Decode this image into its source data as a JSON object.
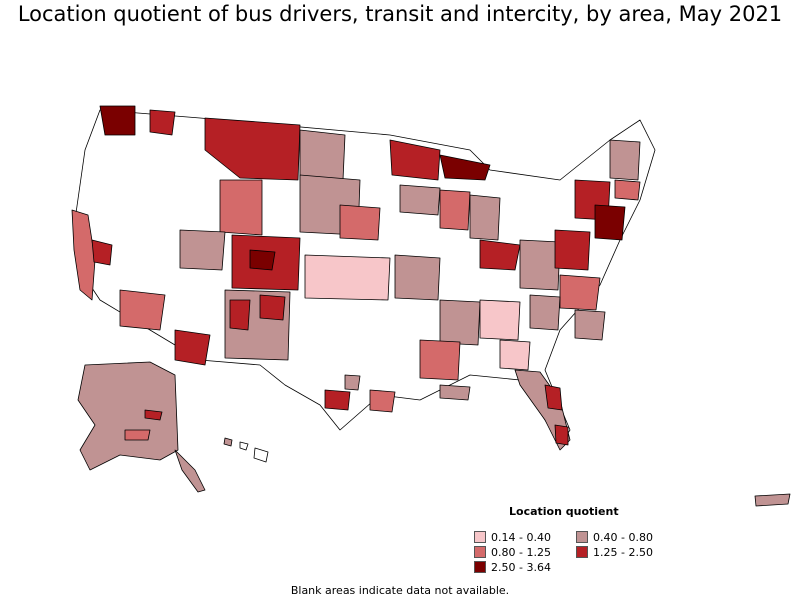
{
  "title": "Location quotient of bus drivers, transit and intercity, by area, May 2021",
  "legend": {
    "title": "Location quotient",
    "items": [
      {
        "label": "0.14 - 0.40",
        "color": "#f7c6c9"
      },
      {
        "label": "0.40 - 0.80",
        "color": "#c09393"
      },
      {
        "label": "0.80 - 1.25",
        "color": "#d46a6a"
      },
      {
        "label": "1.25 - 2.50",
        "color": "#b52025"
      },
      {
        "label": "2.50 - 3.64",
        "color": "#7a0000"
      }
    ]
  },
  "footnote": "Blank areas indicate data not available.",
  "colors": {
    "blank": "#ffffff",
    "border": "#000000"
  }
}
